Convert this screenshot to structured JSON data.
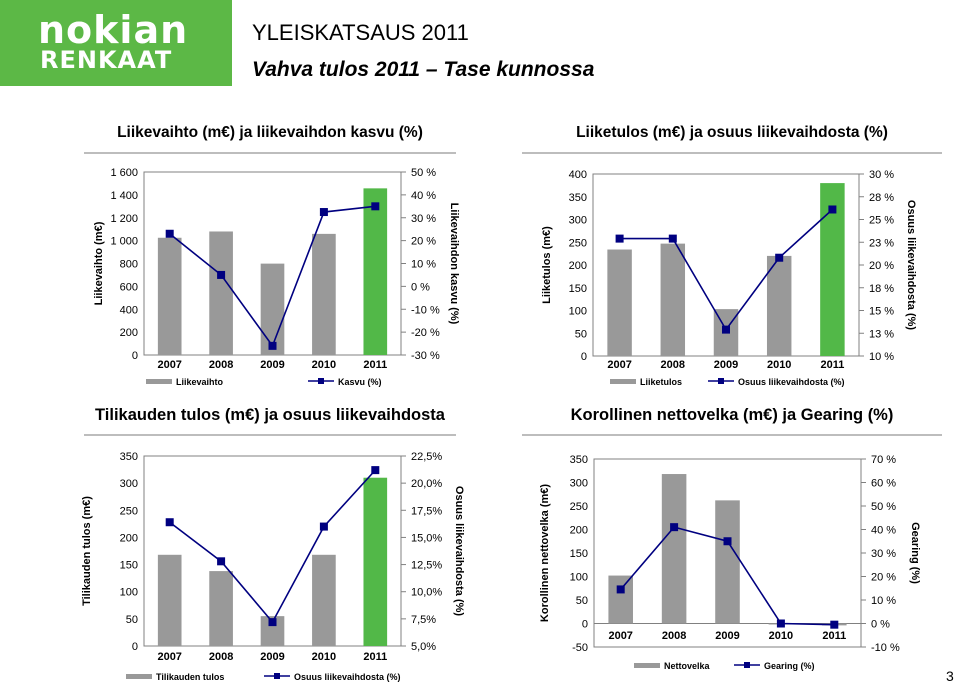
{
  "header": {
    "logo_line1": "nokian",
    "logo_line2": "RENKAAT",
    "title": "YLEISKATSAUS 2011",
    "subtitle": "Vahva tulos 2011 – Tase kunnossa",
    "page_number": "3"
  },
  "colors": {
    "brand_green": "#5cb846",
    "bar_grey": "#999999",
    "bar_highlight": "#52b848",
    "line_navy": "#000080"
  },
  "chart_data": [
    {
      "type": "bar",
      "title": "Liikevaihto (m€) ja liikevaihdon kasvu (%)",
      "categories": [
        "2007",
        "2008",
        "2009",
        "2010",
        "2011"
      ],
      "ylabel": "Liikevaihto  (m€)",
      "y2label": "Liikevaihdon  kasvu (%)",
      "ylim": [
        0,
        1600
      ],
      "y2lim": [
        -30,
        50
      ],
      "yticks": [
        0,
        200,
        400,
        600,
        800,
        1000,
        1200,
        1400,
        1600
      ],
      "ytick_labels": [
        "0",
        "200",
        "400",
        "600",
        "800",
        "1 000",
        "1 200",
        "1 400",
        "1 600"
      ],
      "y2ticks": [
        -30,
        -20,
        -10,
        0,
        10,
        20,
        30,
        40,
        50
      ],
      "y2tick_labels": [
        "-30 %",
        "-20 %",
        "-10 %",
        "0 %",
        "10 %",
        "20 %",
        "30 %",
        "40 %",
        "50 %"
      ],
      "highlight_index": 4,
      "series": [
        {
          "name": "Liikevaihto",
          "type": "bar",
          "values": [
            1025,
            1080,
            799,
            1059,
            1457
          ]
        },
        {
          "name": "Kasvu (%)",
          "type": "line",
          "axis": "right",
          "values": [
            23,
            5,
            -26,
            32.5,
            35
          ]
        }
      ]
    },
    {
      "type": "bar",
      "title": "Liiketulos (m€) ja osuus liikevaihdosta (%)",
      "categories": [
        "2007",
        "2008",
        "2009",
        "2010",
        "2011"
      ],
      "ylabel": "Liiketulos  (m€)",
      "y2label": "Osuus liikevaihdosta  (%)",
      "ylim": [
        0,
        400
      ],
      "y2lim": [
        10,
        30
      ],
      "yticks": [
        0,
        50,
        100,
        150,
        200,
        250,
        300,
        350,
        400
      ],
      "ytick_labels": [
        "0",
        "50",
        "100",
        "150",
        "200",
        "250",
        "300",
        "350",
        "400"
      ],
      "y2ticks": [
        10,
        12.5,
        15,
        17.5,
        20,
        22.5,
        25,
        27.5,
        30
      ],
      "y2tick_labels": [
        "10 %",
        "13 %",
        "15 %",
        "18 %",
        "20 %",
        "23 %",
        "25 %",
        "28 %",
        "30 %"
      ],
      "highlight_index": 4,
      "series": [
        {
          "name": "Liiketulos",
          "type": "bar",
          "values": [
            234,
            247,
            103,
            220,
            380
          ]
        },
        {
          "name": "Osuus liikevaihdosta (%)",
          "type": "line",
          "axis": "right",
          "values": [
            22.9,
            22.9,
            12.9,
            20.8,
            26.1
          ]
        }
      ]
    },
    {
      "type": "bar",
      "title": "Tilikauden tulos (m€) ja osuus liikevaihdosta",
      "categories": [
        "2007",
        "2008",
        "2009",
        "2010",
        "2011"
      ],
      "ylabel": "Tilikauden  tulos (m€)",
      "y2label": "Osuus liikevaihdosta  (%)",
      "ylim": [
        0,
        350
      ],
      "y2lim": [
        5,
        22.5
      ],
      "yticks": [
        0,
        50,
        100,
        150,
        200,
        250,
        300,
        350
      ],
      "ytick_labels": [
        "0",
        "50",
        "100",
        "150",
        "200",
        "250",
        "300",
        "350"
      ],
      "y2ticks": [
        5,
        7.5,
        10,
        12.5,
        15,
        17.5,
        20,
        22.5
      ],
      "y2tick_labels": [
        "5,0%",
        "7,5%",
        "10,0%",
        "12,5%",
        "15,0%",
        "17,5%",
        "20,0%",
        "22,5%"
      ],
      "highlight_index": 4,
      "series": [
        {
          "name": "Tilikauden tulos",
          "type": "bar",
          "values": [
            168,
            138,
            55,
            168,
            310
          ]
        },
        {
          "name": "Osuus liikevaihdosta (%)",
          "type": "line",
          "axis": "right",
          "values": [
            16.4,
            12.8,
            7.2,
            16.0,
            21.2
          ]
        }
      ]
    },
    {
      "type": "bar",
      "title": "Korollinen nettovelka (m€) ja Gearing (%)",
      "categories": [
        "2007",
        "2008",
        "2009",
        "2010",
        "2011"
      ],
      "ylabel": "Korollinen  nettovelka  (m€)",
      "y2label": "Gearing  (%)",
      "ylim": [
        -50,
        350
      ],
      "y2lim": [
        -10,
        70
      ],
      "yticks": [
        -50,
        0,
        50,
        100,
        150,
        200,
        250,
        300,
        350
      ],
      "ytick_labels": [
        "-50",
        "0",
        "50",
        "100",
        "150",
        "200",
        "250",
        "300",
        "350"
      ],
      "y2ticks": [
        -10,
        0,
        10,
        20,
        30,
        40,
        50,
        60,
        70
      ],
      "y2tick_labels": [
        "-10 %",
        "0 %",
        "10 %",
        "20 %",
        "30 %",
        "40 %",
        "50 %",
        "60 %",
        "70 %"
      ],
      "highlight_index": -1,
      "series": [
        {
          "name": "Nettovelka",
          "type": "bar",
          "values": [
            102,
            318,
            262,
            -2,
            -4
          ]
        },
        {
          "name": "Gearing (%)",
          "type": "line",
          "axis": "right",
          "values": [
            14.5,
            41,
            35,
            0,
            -0.5
          ]
        }
      ]
    }
  ]
}
